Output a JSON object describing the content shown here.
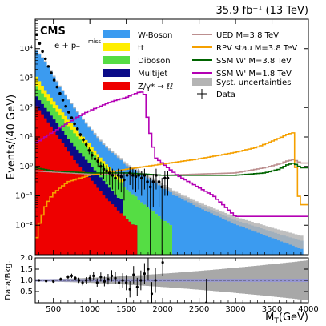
{
  "header": {
    "lumi_label": "35.9 fb⁻¹ (13 TeV)",
    "experiment": "CMS",
    "channel": "e + p",
    "channel_sub": "T",
    "channel_sup": "miss"
  },
  "chart_data": [
    {
      "type": "area",
      "y_scale": "log",
      "xlim": [
        250,
        4000
      ],
      "ylim": [
        0.001,
        100000
      ],
      "xlabel": "",
      "ylabel": "Events/(40 GeV)",
      "y_tick_labels": [
        "10⁻²",
        "10⁻¹",
        "10⁰",
        "10¹",
        "10²",
        "10³",
        "10⁴"
      ],
      "y_tick_values": [
        0.01,
        0.1,
        1,
        10,
        100,
        1000,
        10000
      ],
      "legend_position": "top",
      "stack": [
        {
          "name": "W-Boson",
          "color": "#3b9bf0",
          "x": [
            250,
            400,
            600,
            800,
            1000,
            1200,
            1500,
            1800,
            2100,
            2500,
            3000,
            3500,
            3900
          ],
          "y": [
            9000,
            3000,
            400,
            70,
            15,
            4,
            1,
            0.4,
            0.15,
            0.05,
            0.015,
            0.006,
            0.003
          ]
        },
        {
          "name": "tt",
          "color": "#ffee00",
          "x": [
            250,
            400,
            600,
            800,
            1000,
            1200,
            1400
          ],
          "y": [
            700,
            150,
            35,
            8,
            2,
            0.4,
            0.1
          ]
        },
        {
          "name": "Diboson",
          "color": "#55dd44",
          "x": [
            250,
            400,
            600,
            800,
            1000,
            1200,
            1500,
            1800,
            2100
          ],
          "y": [
            350,
            120,
            30,
            8,
            2.5,
            0.7,
            0.15,
            0.04,
            0.01
          ]
        },
        {
          "name": "Multijet",
          "color": "#0b0b88",
          "x": [
            250,
            400,
            600,
            800,
            1000,
            1200,
            1400
          ],
          "y": [
            150,
            50,
            12,
            3,
            0.8,
            0.2,
            0.05
          ]
        },
        {
          "name": "Z/γ* → ℓℓ",
          "color": "#ee0000",
          "x": [
            250,
            400,
            600,
            800,
            1000,
            1200,
            1400,
            1600
          ],
          "y": [
            130,
            40,
            8,
            1.5,
            0.4,
            0.1,
            0.03,
            0.01
          ]
        }
      ],
      "signals": [
        {
          "name": "UED M=3.8 TeV",
          "color": "#bc8f8f",
          "x": [
            250,
            1000,
            2000,
            3000,
            3400,
            3600,
            3700,
            3800,
            3900
          ],
          "y": [
            0.7,
            0.55,
            0.5,
            0.6,
            0.9,
            1.2,
            1.5,
            1.7,
            1.3
          ]
        },
        {
          "name": "RPV stau M=3.8 TeV",
          "color": "#f5a000",
          "x": [
            250,
            300,
            400,
            500,
            700,
            1000,
            1500,
            2000,
            2500,
            3000,
            3300,
            3600,
            3700,
            3800,
            3850,
            3900
          ],
          "y": [
            0.002,
            0.01,
            0.05,
            0.12,
            0.3,
            0.5,
            0.8,
            1.2,
            1.8,
            3,
            4.5,
            9,
            12,
            14,
            0.15,
            0.05
          ]
        },
        {
          "name": "SSM W' M=3.8 TeV",
          "color": "#006400",
          "x": [
            250,
            500,
            1000,
            1500,
            2000,
            2500,
            3000,
            3400,
            3600,
            3700,
            3800,
            3900
          ],
          "y": [
            0.9,
            0.7,
            0.6,
            0.6,
            0.5,
            0.5,
            0.5,
            0.6,
            0.8,
            1.1,
            1.3,
            0.9
          ]
        },
        {
          "name": "SSM W' M=1.8 TeV",
          "color": "#b400b4",
          "x": [
            250,
            500,
            700,
            900,
            1100,
            1300,
            1500,
            1600,
            1700,
            1750,
            1800,
            1900,
            2200,
            2700,
            3000
          ],
          "y": [
            6,
            15,
            30,
            60,
            100,
            160,
            220,
            280,
            350,
            280,
            30,
            2,
            0.5,
            0.1,
            0.02
          ]
        }
      ],
      "syst_uncertainty": {
        "name": "Syst. uncertainties",
        "color": "#b4b4b4"
      },
      "data_points": {
        "name": "Data",
        "x": [
          270,
          310,
          350,
          390,
          430,
          470,
          510,
          550,
          590,
          630,
          670,
          710,
          750,
          790,
          830,
          870,
          910,
          950,
          990,
          1030,
          1070,
          1110,
          1150,
          1190,
          1230,
          1270,
          1310,
          1350,
          1390,
          1430,
          1470,
          1510,
          1550,
          1590,
          1630,
          1670,
          1710,
          1750,
          1790,
          1830,
          1870,
          1910,
          1950,
          1990,
          2030,
          2070
        ],
        "y": [
          30000,
          15000,
          8000,
          4500,
          2500,
          1500,
          850,
          500,
          300,
          180,
          110,
          70,
          45,
          28,
          19,
          12,
          8,
          5.5,
          3.5,
          2.4,
          1.8,
          1.5,
          1.0,
          0.8,
          0.7,
          0.6,
          0.5,
          0.4,
          0.5,
          0.45,
          0.35,
          0.5,
          0.6,
          0.5,
          0.45,
          0.5,
          0.4,
          0.5,
          0.3,
          0.2,
          0.3,
          0.5,
          0.3,
          0.2,
          0.4,
          0.4
        ]
      }
    },
    {
      "type": "scatter",
      "xlim": [
        250,
        4000
      ],
      "ylim": [
        0,
        2
      ],
      "xlabel": "M",
      "xlabel_sub": "T",
      "xlabel_unit": "(GeV)",
      "ylabel": "Data/Bkg.",
      "x_tick_labels": [
        "500",
        "1000",
        "1500",
        "2000",
        "2500",
        "3000",
        "3500",
        "4000"
      ],
      "x_tick_values": [
        500,
        1000,
        1500,
        2000,
        2500,
        3000,
        3500,
        4000
      ],
      "y_tick_labels": [
        "0.5",
        "1.0",
        "1.5",
        "2.0"
      ],
      "y_tick_values": [
        0.5,
        1.0,
        1.5,
        2.0
      ],
      "ratio_points": {
        "x": [
          300,
          400,
          500,
          600,
          700,
          750,
          800,
          850,
          900,
          950,
          1000,
          1050,
          1100,
          1150,
          1200,
          1250,
          1300,
          1350,
          1400,
          1450,
          1500,
          1550,
          1600,
          1650,
          1700,
          1750,
          1800,
          1850,
          1900,
          2000,
          2600
        ],
        "y": [
          1.0,
          0.97,
          0.95,
          1.05,
          1.15,
          1.2,
          1.1,
          1.0,
          0.9,
          1.0,
          1.1,
          1.2,
          0.9,
          1.15,
          0.95,
          1.05,
          1.2,
          1.1,
          0.9,
          1.0,
          0.9,
          0.6,
          1.25,
          0.7,
          1.0,
          1.3,
          1.5,
          0.4,
          1.0,
          1.8,
          0.0
        ]
      },
      "syst_band_color": "#a8a8a8",
      "stat_band_color": "#9090e0"
    }
  ]
}
